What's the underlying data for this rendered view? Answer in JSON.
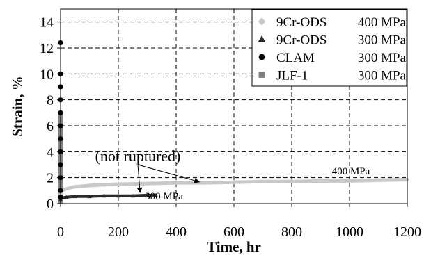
{
  "chart_data": {
    "type": "scatter",
    "xlabel": "Time, hr",
    "ylabel": "Strain, %",
    "xlim": [
      0,
      1200
    ],
    "ylim": [
      0,
      15
    ],
    "xticks": [
      0,
      200,
      400,
      600,
      800,
      1000,
      1200
    ],
    "yticks": [
      0,
      2,
      4,
      6,
      8,
      10,
      12,
      14
    ],
    "grid": true,
    "legend_position": "top-right",
    "colors": {
      "s400": "#c8c8c8",
      "s300": "#2a2a2a",
      "clam": "#000000",
      "jlf": "#808080"
    },
    "legend": [
      {
        "name": "9Cr-ODS",
        "stress": "400 MPa",
        "marker": "diamond",
        "color": "#c8c8c8"
      },
      {
        "name": "9Cr-ODS",
        "stress": "300 MPa",
        "marker": "triangle",
        "color": "#2a2a2a"
      },
      {
        "name": "CLAM",
        "stress": "300 MPa",
        "marker": "circle",
        "color": "#000000"
      },
      {
        "name": "JLF-1",
        "stress": "300 MPa",
        "marker": "square",
        "color": "#808080"
      }
    ],
    "series": [
      {
        "name": "9Cr-ODS 400 MPa",
        "x": [
          0,
          5,
          15,
          30,
          50,
          80,
          100,
          150,
          200,
          300,
          400,
          500,
          600,
          700,
          800,
          900,
          1000,
          1100,
          1200
        ],
        "y": [
          0.7,
          1.0,
          1.1,
          1.2,
          1.3,
          1.35,
          1.4,
          1.45,
          1.5,
          1.55,
          1.6,
          1.6,
          1.65,
          1.7,
          1.7,
          1.75,
          1.75,
          1.8,
          1.85
        ]
      },
      {
        "name": "9Cr-ODS 300 MPa",
        "x": [
          0,
          5,
          20,
          50,
          100,
          150,
          200,
          250,
          300,
          330
        ],
        "y": [
          0.3,
          0.45,
          0.5,
          0.55,
          0.55,
          0.6,
          0.6,
          0.6,
          0.65,
          0.65
        ]
      },
      {
        "name": "CLAM 300 MPa",
        "x": [
          0,
          0,
          0,
          0,
          0,
          0,
          0,
          0,
          0,
          0,
          0,
          0
        ],
        "y": [
          0.5,
          1.0,
          2.0,
          3.0,
          4.0,
          5.0,
          6.0,
          7.0,
          8.0,
          9.0,
          10.0,
          12.4
        ]
      },
      {
        "name": "JLF-1 300 MPa",
        "x": [
          0,
          0,
          0,
          0,
          0,
          0,
          0,
          0,
          0,
          0,
          0,
          0,
          0,
          0
        ],
        "y": [
          0.2,
          0.7,
          1.2,
          1.7,
          2.2,
          2.7,
          3.2,
          3.7,
          4.2,
          4.7,
          5.2,
          5.7,
          6.2,
          6.7
        ]
      }
    ],
    "annotations": [
      {
        "text": "(not ruptured)",
        "arrow_targets": [
          {
            "x": 275,
            "y": 0.65
          },
          {
            "x": 490,
            "y": 1.57
          }
        ]
      },
      {
        "text": "400 MPa",
        "x": 1000,
        "y": 2.4
      },
      {
        "text": "300 MPa",
        "x": 430,
        "y": 0.65
      }
    ]
  }
}
